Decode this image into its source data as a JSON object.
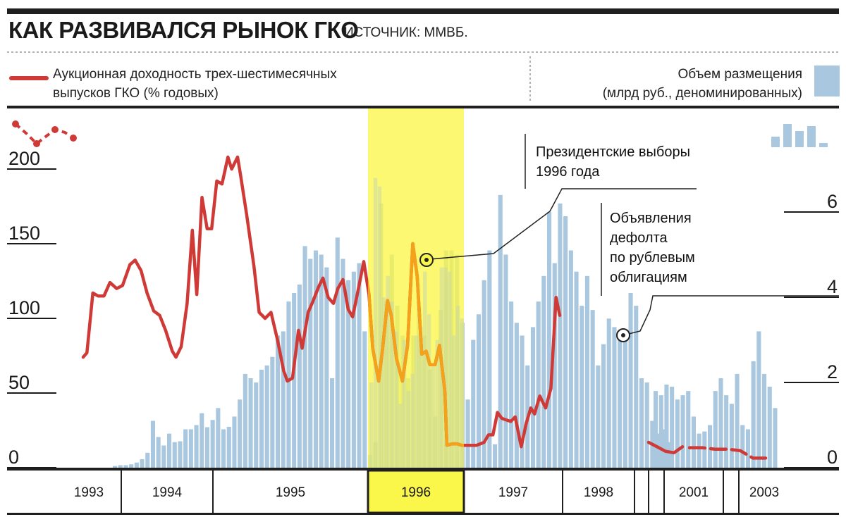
{
  "header": {
    "title": "КАК РАЗВИВАЛСЯ РЫНОК ГКО",
    "source": "ИСТОЧНИК: ММВБ."
  },
  "legend": {
    "line_label_1": "Аукционная доходность трех-шестимесячных",
    "line_label_2": "выпусков ГКО (% годовых)",
    "bar_label_1": "Объем размещения",
    "bar_label_2": "(млрд руб., деноминированных)",
    "line_color": "#d03a36",
    "bar_color": "#a9c8df"
  },
  "annotations": {
    "elections_1": "Президентские выборы",
    "elections_2": "1996 года",
    "default_1": "Объявления",
    "default_2": "дефолта",
    "default_3": "по рублевым",
    "default_4": "облигациям"
  },
  "highlight": {
    "year": "1996",
    "color": "#fbf64a"
  },
  "chart_data": {
    "type": "bar+line",
    "left_axis": {
      "ticks": [
        0,
        50,
        100,
        150,
        200
      ],
      "range": [
        0,
        220
      ]
    },
    "right_axis": {
      "ticks": [
        0,
        2,
        4,
        6
      ],
      "range": [
        0,
        8
      ]
    },
    "years": [
      "1993",
      "1994",
      "1995",
      "1996",
      "1997",
      "1998",
      "",
      "",
      "2001",
      "2003"
    ],
    "series": [
      {
        "values": [
          [
            1993.3,
            74
          ],
          [
            1993.35,
            77
          ],
          [
            1993.43,
            117
          ],
          [
            1993.5,
            115
          ],
          [
            1993.58,
            115
          ],
          [
            1993.66,
            124
          ],
          [
            1993.75,
            120
          ],
          [
            1993.83,
            122
          ],
          [
            1993.93,
            136
          ],
          [
            1994.0,
            139
          ],
          [
            1994.08,
            132
          ],
          [
            1994.16,
            117
          ],
          [
            1994.25,
            105
          ],
          [
            1994.33,
            102
          ],
          [
            1994.41,
            92
          ],
          [
            1994.5,
            78
          ],
          [
            1994.55,
            74
          ],
          [
            1994.62,
            81
          ],
          [
            1994.7,
            110
          ],
          [
            1994.77,
            159
          ],
          [
            1994.83,
            116
          ],
          [
            1994.9,
            181
          ],
          [
            1994.97,
            160
          ],
          [
            1995.03,
            160
          ],
          [
            1995.1,
            192
          ],
          [
            1995.17,
            190
          ],
          [
            1995.25,
            208
          ],
          [
            1995.3,
            200
          ],
          [
            1995.38,
            208
          ],
          [
            1995.42,
            196
          ],
          [
            1995.5,
            170
          ],
          [
            1995.6,
            135
          ],
          [
            1995.67,
            104
          ],
          [
            1995.75,
            100
          ],
          [
            1995.83,
            104
          ],
          [
            1995.92,
            85
          ],
          [
            1996.0,
            65
          ],
          [
            1996.05,
            58
          ],
          [
            1996.12,
            60
          ],
          [
            1996.2,
            92
          ],
          [
            1996.25,
            80
          ],
          [
            1996.33,
            104
          ],
          [
            1996.4,
            112
          ],
          [
            1996.47,
            121
          ],
          [
            1996.53,
            127
          ],
          [
            1996.6,
            114
          ],
          [
            1996.67,
            110
          ],
          [
            1996.73,
            120
          ],
          [
            1996.8,
            126
          ],
          [
            1996.87,
            106
          ],
          [
            1996.93,
            101
          ],
          [
            1997.0,
            118
          ],
          [
            1997.08,
            138
          ],
          [
            1997.15,
            116
          ],
          [
            1997.2,
            80
          ],
          [
            1997.28,
            58
          ],
          [
            1997.33,
            78
          ],
          [
            1997.4,
            112
          ],
          [
            1997.45,
            102
          ],
          [
            1997.52,
            73
          ],
          [
            1997.6,
            58
          ],
          [
            1997.67,
            82
          ],
          [
            1997.74,
            150
          ],
          [
            1997.8,
            128
          ],
          [
            1997.86,
            76
          ],
          [
            1997.92,
            78
          ],
          [
            1997.97,
            69
          ],
          [
            1998.04,
            69
          ],
          [
            1998.1,
            82
          ],
          [
            1998.17,
            52
          ],
          [
            1998.2,
            15
          ],
          [
            1998.27,
            16
          ],
          [
            1998.34,
            16
          ],
          [
            1998.4,
            15
          ],
          [
            1998.5,
            15
          ],
          [
            1998.6,
            15
          ],
          [
            1998.7,
            17
          ],
          [
            1998.76,
            22
          ],
          [
            1998.82,
            22
          ],
          [
            1998.88,
            37
          ],
          [
            1998.94,
            33
          ],
          [
            1999.0,
            32
          ],
          [
            1999.06,
            31
          ],
          [
            1999.12,
            34
          ],
          [
            1999.2,
            14
          ],
          [
            1999.27,
            30
          ],
          [
            1999.33,
            40
          ],
          [
            1999.38,
            36
          ],
          [
            1999.45,
            48
          ],
          [
            1999.53,
            40
          ],
          [
            1999.6,
            53
          ],
          [
            1999.67,
            114
          ],
          [
            1999.72,
            102
          ]
        ],
        "segments_after_default": [
          [
            [
              2000.5,
              17
            ],
            [
              2000.6,
              14
            ],
            [
              2000.7,
              11
            ],
            [
              2000.8,
              10
            ],
            [
              2000.9,
              14
            ]
          ],
          [
            [
              2001.2,
              12
            ],
            [
              2001.4,
              12
            ],
            [
              2001.6,
              11
            ],
            [
              2001.8,
              11
            ],
            [
              2002.0,
              10
            ],
            [
              2002.2,
              5
            ],
            [
              2002.4,
              5
            ]
          ]
        ]
      }
    ],
    "bars_volume": [
      0.04,
      0.06,
      0.06,
      0.08,
      0.12,
      0.2,
      0.35,
      1.1,
      0.72,
      0.52,
      0.8,
      0.6,
      0.62,
      0.9,
      0.9,
      1.0,
      1.28,
      0.95,
      1.12,
      1.4,
      0.9,
      0.96,
      1.2,
      1.6,
      2.2,
      2.1,
      2.0,
      2.3,
      2.4,
      2.6,
      3.1,
      3.2,
      3.9,
      4.1,
      4.3,
      5.2,
      4.9,
      5.1,
      5.0,
      4.7,
      2.1,
      5.4,
      4.9,
      4.4,
      4.6,
      4.8,
      3.2,
      0.3,
      0.6,
      6.2,
      3.9,
      5.0,
      3.8,
      3.1,
      2.1,
      3.1,
      3.8,
      3.1,
      2.3,
      1.2,
      3.7,
      5.1,
      5.1,
      5.0,
      3.4,
      1.6,
      3.0,
      3.6,
      4.4,
      5.1,
      0.55,
      6.4,
      5.0,
      3.9,
      3.4,
      3.1,
      2.4,
      3.3,
      3.9,
      4.5,
      6.0,
      4.8,
      6.2,
      5.9,
      5.1,
      4.6,
      3.8,
      4.5,
      3.7,
      2.4,
      2.9,
      3.5,
      3.3,
      3.0,
      3.0,
      4.1,
      3.8,
      2.1,
      2.0,
      1.1,
      0.8,
      0.9,
      0.6,
      1.8,
      1.7,
      1.95,
      1.9,
      1.6,
      1.7,
      1.8,
      1.2,
      0.8,
      0.85,
      1.0,
      1.8,
      2.1,
      1.7,
      1.5,
      2.2,
      1.0,
      0.9,
      2.5,
      3.2,
      2.2,
      1.9,
      1.4,
      0.5,
      0.5,
      0.8,
      1.2,
      0.6,
      1.5,
      1.6,
      1.3,
      4.0,
      1.8,
      0.7
    ],
    "bars_extra": [
      1.8,
      1.7,
      1.95,
      1.9,
      1.6,
      1.7,
      1.8,
      1.2,
      0.8,
      0.85,
      1.0,
      1.8,
      2.1,
      1.7,
      1.5,
      2.2,
      1.0,
      0.9,
      2.5,
      3.2,
      2.2,
      1.9,
      1.4,
      0.5,
      0.5,
      0.8,
      1.2,
      0.6,
      1.5,
      1.6,
      1.3,
      4.0,
      1.8,
      0.7
    ],
    "bars_highlight": [
      2.0,
      6.8,
      6.6,
      4.0,
      4.5,
      3.9,
      3.2,
      1.5,
      3.0,
      1.8,
      2.2,
      3.1,
      3.3,
      4.6,
      3.6,
      2.4,
      3.0,
      4.7,
      4.7,
      4.6,
      3.1,
      3.8,
      3.5
    ],
    "elections_point": [
      1996.5,
      155
    ],
    "default_point": [
      1999.75,
      100
    ]
  }
}
